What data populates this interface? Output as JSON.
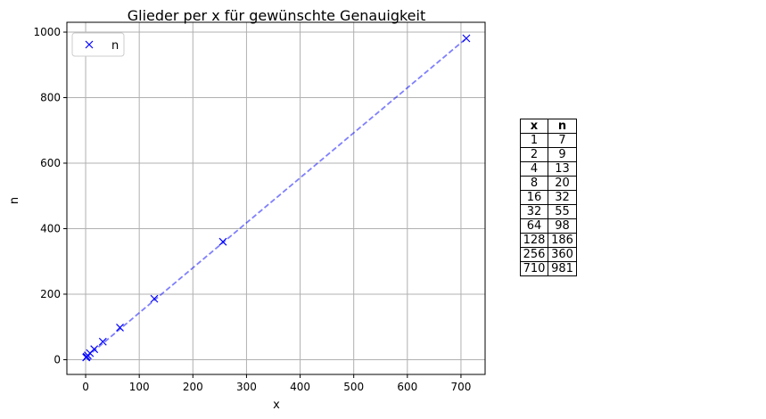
{
  "chart_data": {
    "type": "scatter",
    "title": "Glieder per x für gewünschte Genauigkeit",
    "xlabel": "x",
    "ylabel": "n",
    "xlim": [
      -35,
      745
    ],
    "ylim": [
      -45,
      1030
    ],
    "xticks": [
      0,
      100,
      200,
      300,
      400,
      500,
      600,
      700
    ],
    "yticks": [
      0,
      200,
      400,
      600,
      800,
      1000
    ],
    "grid": true,
    "legend": "top-left",
    "series": [
      {
        "name": "n",
        "marker": "x",
        "color": "#0000ff",
        "x": [
          1,
          2,
          4,
          8,
          16,
          32,
          64,
          128,
          256,
          710
        ],
        "y": [
          7,
          9,
          13,
          20,
          32,
          55,
          98,
          186,
          360,
          981
        ]
      }
    ],
    "fit_line": {
      "color": "#0000ff",
      "style": "dashed",
      "x": [
        1,
        710
      ],
      "y": [
        7,
        981
      ]
    }
  },
  "table": {
    "headers": [
      "x",
      "n"
    ],
    "rows": [
      [
        "1",
        "7"
      ],
      [
        "2",
        "9"
      ],
      [
        "4",
        "13"
      ],
      [
        "8",
        "20"
      ],
      [
        "16",
        "32"
      ],
      [
        "32",
        "55"
      ],
      [
        "64",
        "98"
      ],
      [
        "128",
        "186"
      ],
      [
        "256",
        "360"
      ],
      [
        "710",
        "981"
      ]
    ]
  }
}
